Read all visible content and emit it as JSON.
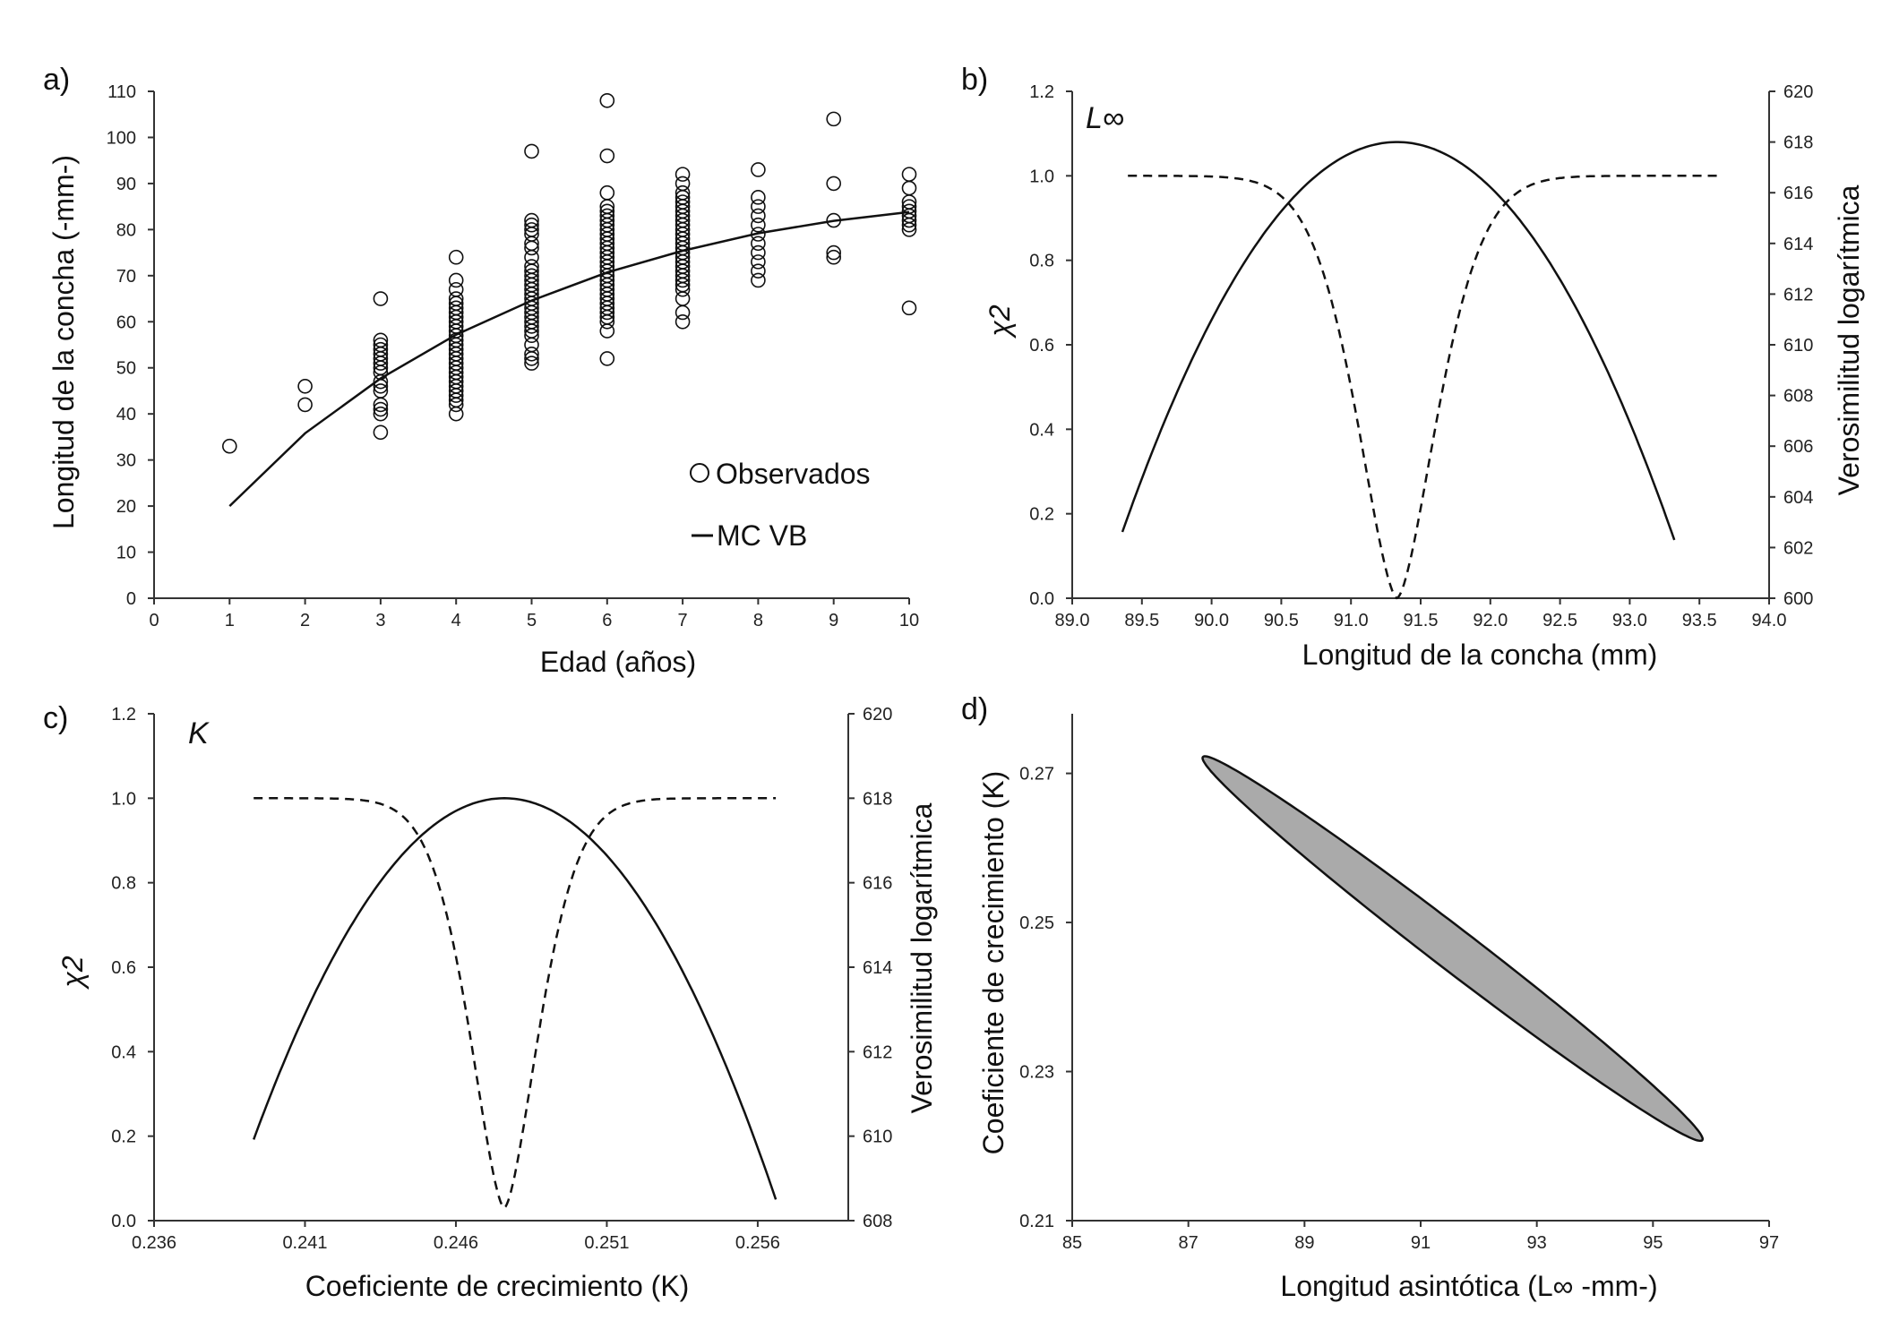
{
  "chart_data": [
    {
      "id": "a",
      "panel_label": "a)",
      "type": "scatter",
      "xlabel": "Edad (años)",
      "ylabel": "Longitud de la concha (-mm-)",
      "xlim": [
        0,
        10
      ],
      "ylim": [
        0,
        110
      ],
      "x_ticks": [
        0,
        1,
        2,
        3,
        4,
        5,
        6,
        7,
        8,
        9,
        10
      ],
      "y_ticks": [
        0,
        10,
        20,
        30,
        40,
        50,
        60,
        70,
        80,
        90,
        100,
        110
      ],
      "legend": [
        {
          "marker": "circle",
          "label": "Observados"
        },
        {
          "marker": "line",
          "label": "MC VB"
        }
      ],
      "legend_position": "lower-right",
      "series": [
        {
          "name": "Observados",
          "style": "open-circle",
          "points": [
            [
              1,
              33
            ],
            [
              2,
              42
            ],
            [
              2,
              46
            ],
            [
              3,
              36
            ],
            [
              3,
              40
            ],
            [
              3,
              41
            ],
            [
              3,
              42
            ],
            [
              3,
              45
            ],
            [
              3,
              46
            ],
            [
              3,
              47
            ],
            [
              3,
              49
            ],
            [
              3,
              50
            ],
            [
              3,
              51
            ],
            [
              3,
              52
            ],
            [
              3,
              53
            ],
            [
              3,
              54
            ],
            [
              3,
              55
            ],
            [
              3,
              56
            ],
            [
              3,
              65
            ],
            [
              4,
              40
            ],
            [
              4,
              42
            ],
            [
              4,
              43
            ],
            [
              4,
              44
            ],
            [
              4,
              45
            ],
            [
              4,
              46
            ],
            [
              4,
              47
            ],
            [
              4,
              48
            ],
            [
              4,
              49
            ],
            [
              4,
              50
            ],
            [
              4,
              51
            ],
            [
              4,
              52
            ],
            [
              4,
              53
            ],
            [
              4,
              54
            ],
            [
              4,
              55
            ],
            [
              4,
              56
            ],
            [
              4,
              57
            ],
            [
              4,
              58
            ],
            [
              4,
              59
            ],
            [
              4,
              60
            ],
            [
              4,
              61
            ],
            [
              4,
              62
            ],
            [
              4,
              63
            ],
            [
              4,
              64
            ],
            [
              4,
              65
            ],
            [
              4,
              67
            ],
            [
              4,
              69
            ],
            [
              4,
              74
            ],
            [
              5,
              51
            ],
            [
              5,
              52
            ],
            [
              5,
              53
            ],
            [
              5,
              55
            ],
            [
              5,
              57
            ],
            [
              5,
              58
            ],
            [
              5,
              59
            ],
            [
              5,
              60
            ],
            [
              5,
              61
            ],
            [
              5,
              62
            ],
            [
              5,
              63
            ],
            [
              5,
              64
            ],
            [
              5,
              65
            ],
            [
              5,
              66
            ],
            [
              5,
              67
            ],
            [
              5,
              68
            ],
            [
              5,
              69
            ],
            [
              5,
              70
            ],
            [
              5,
              71
            ],
            [
              5,
              72
            ],
            [
              5,
              74
            ],
            [
              5,
              76
            ],
            [
              5,
              77
            ],
            [
              5,
              79
            ],
            [
              5,
              80
            ],
            [
              5,
              81
            ],
            [
              5,
              82
            ],
            [
              5,
              97
            ],
            [
              6,
              52
            ],
            [
              6,
              58
            ],
            [
              6,
              60
            ],
            [
              6,
              61
            ],
            [
              6,
              62
            ],
            [
              6,
              63
            ],
            [
              6,
              64
            ],
            [
              6,
              65
            ],
            [
              6,
              66
            ],
            [
              6,
              67
            ],
            [
              6,
              68
            ],
            [
              6,
              69
            ],
            [
              6,
              70
            ],
            [
              6,
              71
            ],
            [
              6,
              72
            ],
            [
              6,
              73
            ],
            [
              6,
              74
            ],
            [
              6,
              75
            ],
            [
              6,
              76
            ],
            [
              6,
              77
            ],
            [
              6,
              78
            ],
            [
              6,
              79
            ],
            [
              6,
              80
            ],
            [
              6,
              81
            ],
            [
              6,
              82
            ],
            [
              6,
              83
            ],
            [
              6,
              84
            ],
            [
              6,
              85
            ],
            [
              6,
              88
            ],
            [
              6,
              96
            ],
            [
              6,
              108
            ],
            [
              7,
              60
            ],
            [
              7,
              62
            ],
            [
              7,
              65
            ],
            [
              7,
              67
            ],
            [
              7,
              68
            ],
            [
              7,
              69
            ],
            [
              7,
              70
            ],
            [
              7,
              71
            ],
            [
              7,
              72
            ],
            [
              7,
              73
            ],
            [
              7,
              74
            ],
            [
              7,
              75
            ],
            [
              7,
              76
            ],
            [
              7,
              77
            ],
            [
              7,
              78
            ],
            [
              7,
              79
            ],
            [
              7,
              80
            ],
            [
              7,
              81
            ],
            [
              7,
              82
            ],
            [
              7,
              83
            ],
            [
              7,
              84
            ],
            [
              7,
              85
            ],
            [
              7,
              86
            ],
            [
              7,
              87
            ],
            [
              7,
              88
            ],
            [
              7,
              90
            ],
            [
              7,
              92
            ],
            [
              8,
              69
            ],
            [
              8,
              71
            ],
            [
              8,
              73
            ],
            [
              8,
              75
            ],
            [
              8,
              77
            ],
            [
              8,
              79
            ],
            [
              8,
              81
            ],
            [
              8,
              83
            ],
            [
              8,
              85
            ],
            [
              8,
              87
            ],
            [
              8,
              93
            ],
            [
              9,
              74
            ],
            [
              9,
              75
            ],
            [
              9,
              82
            ],
            [
              9,
              90
            ],
            [
              9,
              104
            ],
            [
              10,
              63
            ],
            [
              10,
              80
            ],
            [
              10,
              81
            ],
            [
              10,
              82
            ],
            [
              10,
              83
            ],
            [
              10,
              84
            ],
            [
              10,
              85
            ],
            [
              10,
              86
            ],
            [
              10,
              89
            ],
            [
              10,
              92
            ]
          ]
        },
        {
          "name": "MC VB",
          "style": "solid-line",
          "x": [
            1,
            2,
            3,
            4,
            5,
            6,
            7,
            8,
            9,
            10
          ],
          "y": [
            20,
            35.8,
            47.7,
            57.2,
            64.6,
            70.7,
            75.4,
            79.2,
            81.9,
            83.8
          ]
        }
      ]
    },
    {
      "id": "b",
      "panel_label": "b)",
      "type": "line",
      "annotation": "L∞",
      "xlabel": "Longitud de la concha (mm)",
      "ylabel": "χ2",
      "y2label": "Verosimilitud logarítmica",
      "xlim": [
        89.0,
        94.0
      ],
      "ylim": [
        0.0,
        1.2
      ],
      "y2lim": [
        600,
        620
      ],
      "x_ticks": [
        "89.0",
        "89.5",
        "90.0",
        "90.5",
        "91.0",
        "91.5",
        "92.0",
        "92.5",
        "93.0",
        "93.5",
        "94.0"
      ],
      "y_ticks": [
        "0.0",
        "0.2",
        "0.4",
        "0.6",
        "0.8",
        "1.0",
        "1.2"
      ],
      "y2_ticks": [
        "600",
        "602",
        "604",
        "606",
        "608",
        "610",
        "612",
        "614",
        "616",
        "618",
        "620"
      ],
      "grid": false,
      "series": [
        {
          "axis": "y2",
          "style": "solid",
          "vertex_x": 91.33,
          "vertex_y": 618.0,
          "x_range": [
            89.36,
            93.32
          ],
          "end_y": 602.3
        },
        {
          "axis": "y",
          "style": "dashed",
          "center_x": 91.33,
          "plateau_y": 1.0,
          "min_y": 0.0,
          "width": 0.68,
          "x_range": [
            89.4,
            93.66
          ]
        }
      ]
    },
    {
      "id": "c",
      "panel_label": "c)",
      "type": "line",
      "annotation": "K",
      "xlabel": "Coeficiente de crecimiento (K)",
      "ylabel": "χ2",
      "y2label": "Verosimilitud logarítmica",
      "xlim": [
        0.236,
        0.259
      ],
      "ylim": [
        0.0,
        1.2
      ],
      "y2lim": [
        608,
        620
      ],
      "x_ticks": [
        "0.236",
        "0.241",
        "0.246",
        "0.251",
        "0.256"
      ],
      "y_ticks": [
        "0.0",
        "0.2",
        "0.4",
        "0.6",
        "0.8",
        "1.0",
        "1.2"
      ],
      "y2_ticks": [
        "608",
        "610",
        "612",
        "614",
        "616",
        "618",
        "620"
      ],
      "grid": false,
      "series": [
        {
          "axis": "y2",
          "style": "solid",
          "vertex_x": 0.2476,
          "vertex_y": 618.0,
          "x_range": [
            0.2393,
            0.2566
          ],
          "end_y": 608.5
        },
        {
          "axis": "y",
          "style": "dashed",
          "center_x": 0.2476,
          "plateau_y": 1.0,
          "min_y": 0.03,
          "width": 0.0027,
          "x_range": [
            0.2393,
            0.2566
          ]
        }
      ]
    },
    {
      "id": "d",
      "panel_label": "d)",
      "type": "scatter",
      "xlabel": "Longitud asintótica (L∞ -mm-)",
      "ylabel": "Coeficiente de crecimiento (K)",
      "xlim": [
        85,
        97
      ],
      "ylim": [
        0.21,
        0.278
      ],
      "x_ticks": [
        "85",
        "87",
        "89",
        "91",
        "93",
        "95",
        "97"
      ],
      "y_ticks": [
        "0.21",
        "0.23",
        "0.25",
        "0.27"
      ],
      "ellipse": {
        "center": [
          91.55,
          0.2465
        ],
        "end1": [
          87.25,
          0.2722
        ],
        "end2": [
          95.85,
          0.2208
        ],
        "half_width_k": 0.0028,
        "fill": "#aaaaaa",
        "stroke": "#111111"
      }
    }
  ]
}
